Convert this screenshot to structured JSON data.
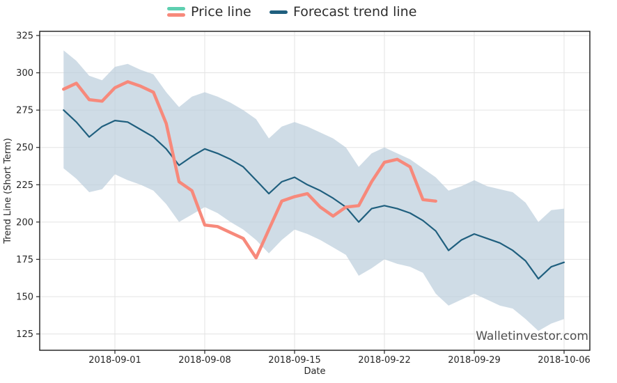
{
  "page": {
    "watermark": "Walletinvestor.com"
  },
  "legend": {
    "items": [
      {
        "label": "Price line"
      },
      {
        "label": "Forecast trend line"
      }
    ]
  },
  "colors": {
    "price_line": "#f7897b",
    "forecast_line": "#1f5f7e",
    "legend_price_top": "#5ecfb0",
    "band_fill": "#bccfdc",
    "band_opacity": 0.72,
    "grid": "#e3e3e3",
    "axis": "#1a1a1a",
    "tick": "#262626",
    "text": "#262626"
  },
  "chart_data": {
    "type": "line",
    "title": "",
    "xlabel": "Date",
    "ylabel": "Trend Line (Short Term)",
    "ylim": [
      114,
      328
    ],
    "y_ticks": [
      125,
      150,
      175,
      200,
      225,
      250,
      275,
      300,
      325
    ],
    "x_tick_labels": [
      "2018-09-01",
      "2018-09-08",
      "2018-09-15",
      "2018-09-22",
      "2018-09-29",
      "2018-10-06"
    ],
    "grid": true,
    "legend_position": "top-center",
    "dates": [
      "2018-08-28",
      "2018-08-29",
      "2018-08-30",
      "2018-08-31",
      "2018-09-01",
      "2018-09-02",
      "2018-09-03",
      "2018-09-04",
      "2018-09-05",
      "2018-09-06",
      "2018-09-07",
      "2018-09-08",
      "2018-09-09",
      "2018-09-10",
      "2018-09-11",
      "2018-09-12",
      "2018-09-13",
      "2018-09-14",
      "2018-09-15",
      "2018-09-16",
      "2018-09-17",
      "2018-09-18",
      "2018-09-19",
      "2018-09-20",
      "2018-09-21",
      "2018-09-22",
      "2018-09-23",
      "2018-09-24",
      "2018-09-25",
      "2018-09-26",
      "2018-09-27",
      "2018-09-28",
      "2018-09-29",
      "2018-09-30",
      "2018-10-01",
      "2018-10-02",
      "2018-10-03",
      "2018-10-04",
      "2018-10-05",
      "2018-10-06"
    ],
    "series": [
      {
        "name": "Price line",
        "values": [
          289,
          293,
          282,
          281,
          290,
          294,
          291,
          287,
          266,
          227,
          221,
          198,
          197,
          193,
          189,
          176,
          195,
          214,
          217,
          219,
          210,
          204,
          210,
          211,
          227,
          240,
          242,
          237,
          215,
          214
        ]
      },
      {
        "name": "Forecast trend line",
        "values": [
          275,
          267,
          257,
          264,
          268,
          267,
          262,
          257,
          249,
          238,
          244,
          249,
          246,
          242,
          237,
          228,
          219,
          227,
          230,
          225,
          221,
          216,
          210,
          200,
          209,
          211,
          209,
          206,
          201,
          194,
          181,
          188,
          192,
          189,
          186,
          181,
          174,
          162,
          170,
          173
        ]
      },
      {
        "name": "Forecast upper bound",
        "values": [
          315,
          308,
          298,
          295,
          304,
          306,
          302,
          299,
          287,
          277,
          284,
          287,
          284,
          280,
          275,
          269,
          256,
          264,
          267,
          264,
          260,
          256,
          250,
          237,
          246,
          250,
          246,
          242,
          236,
          230,
          221,
          224,
          228,
          224,
          222,
          220,
          213,
          200,
          208,
          209
        ]
      },
      {
        "name": "Forecast lower bound",
        "values": [
          236,
          229,
          220,
          222,
          232,
          228,
          225,
          221,
          212,
          200,
          205,
          210,
          206,
          200,
          195,
          188,
          179,
          188,
          195,
          192,
          188,
          183,
          178,
          164,
          169,
          175,
          172,
          170,
          166,
          152,
          144,
          148,
          152,
          148,
          144,
          142,
          135,
          127,
          132,
          135
        ]
      }
    ]
  }
}
